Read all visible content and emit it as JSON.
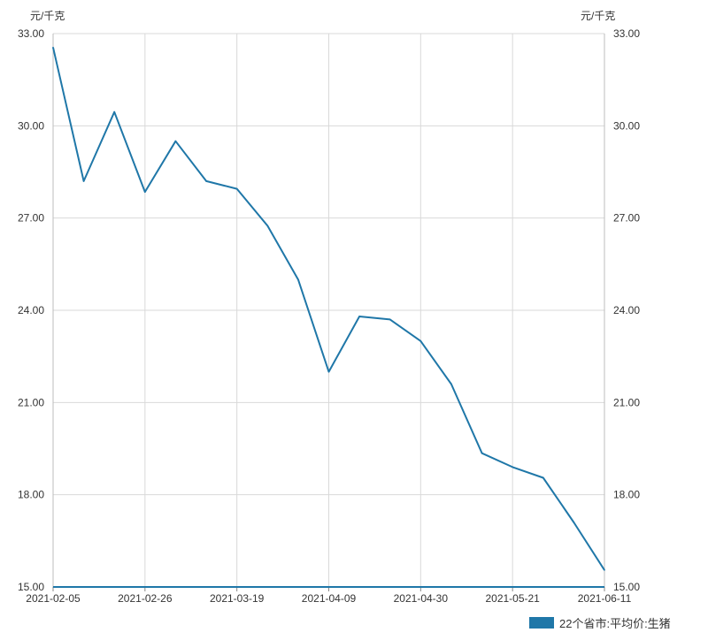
{
  "chart_data": {
    "type": "line",
    "title": "",
    "xlabel": "",
    "ylabel_left": "元/千克",
    "ylabel_right": "元/千克",
    "ylim": [
      15.0,
      33.0
    ],
    "y_ticks": [
      "15.00",
      "18.00",
      "21.00",
      "24.00",
      "27.00",
      "30.00",
      "33.00"
    ],
    "x_tick_labels": [
      "2021-02-05",
      "2021-02-26",
      "2021-03-19",
      "2021-04-09",
      "2021-04-30",
      "2021-05-21",
      "2021-06-11"
    ],
    "grid": true,
    "legend_position": "bottom-right",
    "series": [
      {
        "name": "22个省市:平均价:生猪",
        "color": "#1f77a8",
        "x": [
          "2021-02-05",
          "2021-02-12",
          "2021-02-19",
          "2021-02-26",
          "2021-03-05",
          "2021-03-12",
          "2021-03-19",
          "2021-03-26",
          "2021-04-02",
          "2021-04-09",
          "2021-04-16",
          "2021-04-23",
          "2021-04-30",
          "2021-05-07",
          "2021-05-14",
          "2021-05-21",
          "2021-05-28",
          "2021-06-04",
          "2021-06-11"
        ],
        "values": [
          32.55,
          28.2,
          30.45,
          27.85,
          29.5,
          28.2,
          27.95,
          26.75,
          25.0,
          22.0,
          23.8,
          23.7,
          23.0,
          21.6,
          19.35,
          18.9,
          18.55,
          17.1,
          15.55
        ]
      }
    ]
  }
}
